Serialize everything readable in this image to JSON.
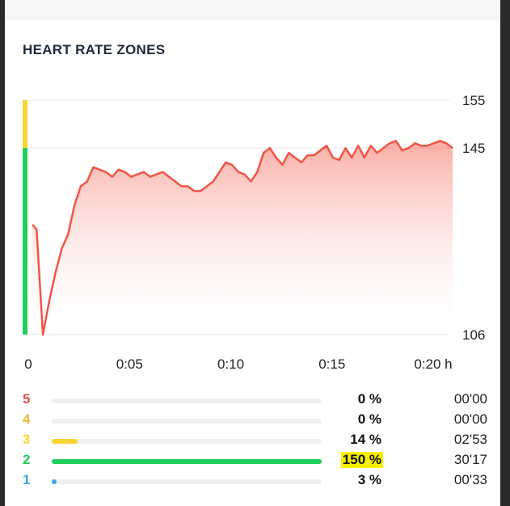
{
  "title": "HEART RATE ZONES",
  "colors": {
    "line": "#ef5545",
    "zone5": "#e4504a",
    "zone4": "#f2b63b",
    "zone3": "#f7d534",
    "zone2": "#1fcf5e",
    "zone1": "#3aa7db",
    "highlight": "#f6f000"
  },
  "chart_data": {
    "type": "area",
    "x_unit": "h",
    "x_ticks": [
      "0",
      "0:05",
      "0:10",
      "0:15",
      "0:20 h"
    ],
    "x_tick_minutes": [
      0,
      5,
      10,
      15,
      20
    ],
    "y_ticks": [
      155,
      145,
      106
    ],
    "ylim": [
      106,
      155
    ],
    "xlim": [
      0,
      20
    ],
    "grid": true,
    "series": [
      {
        "x": [
          0,
          0.2,
          0.5,
          0.8,
          1.1,
          1.4,
          1.7,
          2.0,
          2.3,
          2.6,
          2.9,
          3.2,
          3.5,
          3.8,
          4.1,
          4.4,
          4.7,
          5.0,
          5.3,
          5.6,
          5.9,
          6.2,
          6.5,
          6.8,
          7.1,
          7.4,
          7.7,
          8.0,
          8.3,
          8.6,
          8.9,
          9.2,
          9.5,
          9.8,
          10.1,
          10.4,
          10.7,
          11.0,
          11.3,
          11.6,
          11.9,
          12.2,
          12.5,
          12.8,
          13.1,
          13.4,
          13.7,
          14.0,
          14.3,
          14.6,
          14.9,
          15.2,
          15.5,
          15.8,
          16.1,
          16.4,
          16.7,
          17.0,
          17.3,
          17.6,
          17.9,
          18.2,
          18.5,
          18.8,
          19.1,
          19.4,
          19.7,
          20.0
        ],
        "y": [
          129,
          128,
          106,
          113,
          119,
          124,
          127,
          133,
          137,
          138,
          141,
          140.5,
          140,
          139,
          140.5,
          140,
          139,
          139.5,
          140,
          139,
          139.5,
          140,
          139,
          138,
          137,
          137,
          136,
          136,
          137,
          138,
          140,
          142,
          141.5,
          140,
          139.5,
          138,
          140,
          144,
          145,
          143,
          141.5,
          144,
          143,
          142,
          143.5,
          143.5,
          144.5,
          145.5,
          143,
          142.5,
          145,
          143,
          145.5,
          143,
          145.5,
          144,
          145,
          146,
          146.5,
          144.5,
          145,
          146,
          145.5,
          145.5,
          146,
          146.5,
          146,
          145
        ]
      }
    ]
  },
  "zones": [
    {
      "num": "5",
      "pct": "0 %",
      "time": "00'00",
      "fraction": 0.0,
      "color_key": "zone5",
      "highlight": false
    },
    {
      "num": "4",
      "pct": "0 %",
      "time": "00'00",
      "fraction": 0.0,
      "color_key": "zone4",
      "highlight": false
    },
    {
      "num": "3",
      "pct": "14 %",
      "time": "02'53",
      "fraction": 0.095,
      "color_key": "zone3",
      "highlight": false
    },
    {
      "num": "2",
      "pct": "150 %",
      "time": "30'17",
      "fraction": 1.0,
      "color_key": "zone2",
      "highlight": true
    },
    {
      "num": "1",
      "pct": "3 %",
      "time": "00'33",
      "fraction": 0.018,
      "color_key": "zone1",
      "highlight": false
    }
  ]
}
